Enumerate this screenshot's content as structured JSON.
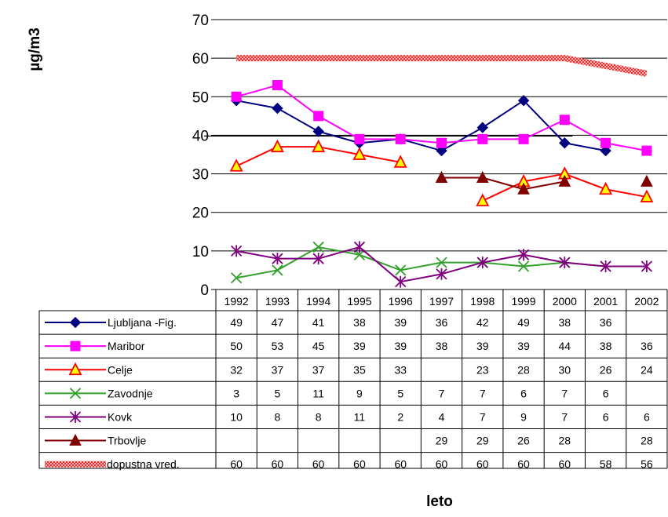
{
  "chart_data": {
    "type": "line",
    "ylabel": "µg/m3",
    "xlabel": "leto",
    "ylim": [
      0,
      70
    ],
    "yticks": [
      "0",
      "10",
      "20",
      "30",
      "40",
      "50",
      "60",
      "70"
    ],
    "grid": true,
    "legend_placement": "data-table",
    "categories": [
      "1992",
      "1993",
      "1994",
      "1995",
      "1996",
      "1997",
      "1998",
      "1999",
      "2000",
      "2001",
      "2002"
    ],
    "reference_line_value": 39,
    "series": [
      {
        "name": "Ljubljana -Fig.",
        "color": "#000080",
        "marker": "diamond",
        "values": [
          49,
          47,
          41,
          38,
          39,
          36,
          42,
          49,
          38,
          36,
          null
        ]
      },
      {
        "name": "Maribor",
        "color": "#ff00ff",
        "marker": "square",
        "values": [
          50,
          53,
          45,
          39,
          39,
          38,
          39,
          39,
          44,
          38,
          36
        ]
      },
      {
        "name": "Celje",
        "color": "#ff0000",
        "marker": "triangle-open",
        "values": [
          32,
          37,
          37,
          35,
          33,
          null,
          23,
          28,
          30,
          26,
          24
        ]
      },
      {
        "name": "Zavodnje",
        "color": "#33a02c",
        "marker": "x",
        "values": [
          3,
          5,
          11,
          9,
          5,
          7,
          7,
          6,
          7,
          6,
          null
        ]
      },
      {
        "name": "Kovk",
        "color": "#800080",
        "marker": "star",
        "values": [
          10,
          8,
          8,
          11,
          2,
          4,
          7,
          9,
          7,
          6,
          6
        ]
      },
      {
        "name": "Trbovlje",
        "color": "#800000",
        "marker": "triangle",
        "values": [
          null,
          null,
          null,
          null,
          null,
          29,
          29,
          26,
          28,
          null,
          28
        ]
      },
      {
        "name": "dopustna vred.",
        "color": "#ff6666",
        "marker": "band",
        "values": [
          60,
          60,
          60,
          60,
          60,
          60,
          60,
          60,
          60,
          58,
          56
        ]
      }
    ]
  }
}
